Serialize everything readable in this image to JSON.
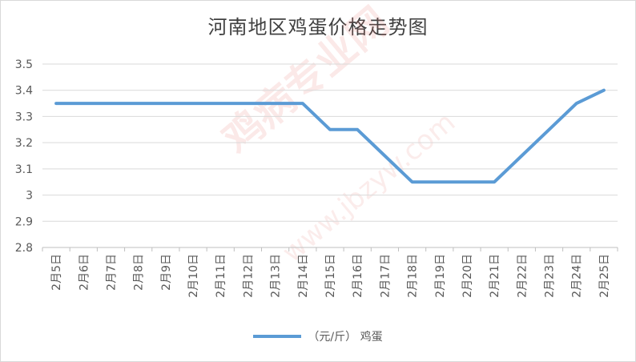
{
  "chart_data": {
    "type": "line",
    "title": "河南地区鸡蛋价格走势图",
    "categories": [
      "2月5日",
      "2月6日",
      "2月7日",
      "2月8日",
      "2月9日",
      "2月10日",
      "2月11日",
      "2月12日",
      "2月13日",
      "2月14日",
      "2月15日",
      "2月16日",
      "2月17日",
      "2月18日",
      "2月19日",
      "2月20日",
      "2月21日",
      "2月22日",
      "2月23日",
      "2月24日",
      "2月25日"
    ],
    "series": [
      {
        "name": "（元/斤） 鸡蛋",
        "color": "#5b9bd5",
        "values": [
          3.35,
          3.35,
          3.35,
          3.35,
          3.35,
          3.35,
          3.35,
          3.35,
          3.35,
          3.35,
          3.25,
          3.25,
          3.15,
          3.05,
          3.05,
          3.05,
          3.05,
          3.15,
          3.25,
          3.35,
          3.4
        ]
      }
    ],
    "yticks": [
      "2.8",
      "2.9",
      "3",
      "3.1",
      "3.2",
      "3.3",
      "3.4",
      "3.5"
    ],
    "ylim": [
      2.8,
      3.5
    ],
    "grid": true,
    "legend": "bottom",
    "watermark": {
      "main": "鸡病专业网",
      "sub": "www.jbzyw.com"
    }
  }
}
